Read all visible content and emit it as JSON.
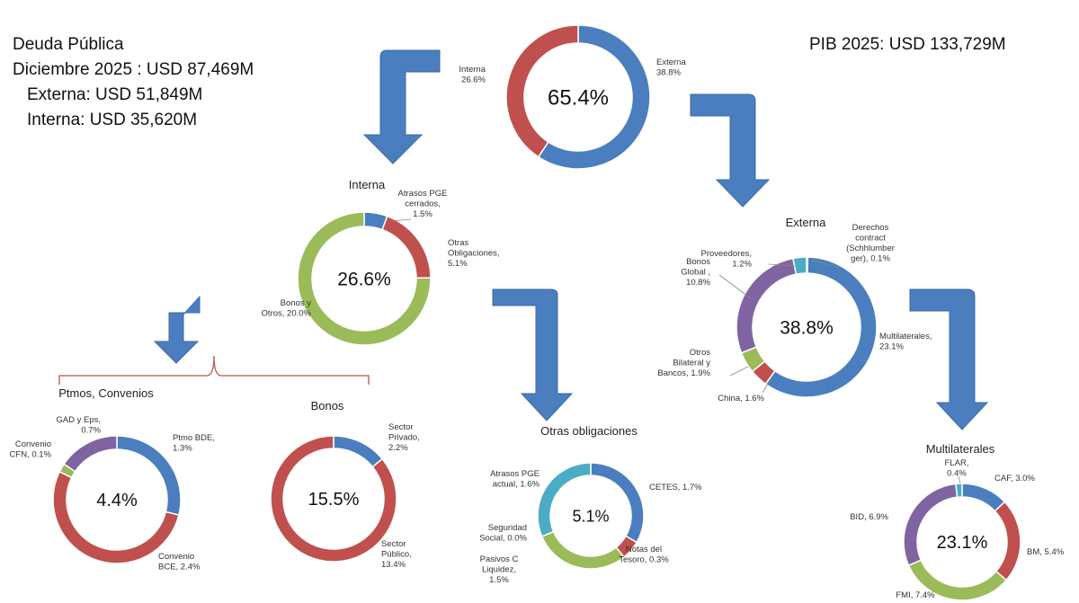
{
  "header": {
    "title": "Deuda Pública",
    "total": "Diciembre 2025 : USD 87,469M",
    "externa": "Externa: USD 51,849M",
    "interna": "Interna:  USD 35,620M",
    "pib": "PIB 2025: USD 133,729M"
  },
  "colors": {
    "blue": "#4a7ebf",
    "red": "#c0504d",
    "green": "#9bbb59",
    "purple": "#8064a2",
    "teal": "#4bacc6",
    "arrow": "#4a7ebf",
    "bracket": "#c0504d"
  },
  "chart_data": [
    {
      "type": "pie",
      "variant": "donut",
      "title": "",
      "center_label": "65.4%",
      "slices": [
        {
          "label": [
            "Externa",
            "38.8%"
          ],
          "value": 38.8,
          "color": "blue"
        },
        {
          "label": [
            "Interna",
            "26.6%"
          ],
          "value": 26.6,
          "color": "red"
        }
      ]
    },
    {
      "type": "pie",
      "variant": "donut",
      "title": "Interna",
      "center_label": "26.6%",
      "slices": [
        {
          "label": [
            "Atrasos PGE",
            "cerrados,",
            "1.5%"
          ],
          "value": 1.5,
          "color": "blue"
        },
        {
          "label": [
            "Otras",
            "Obligaciones,",
            "5.1%"
          ],
          "value": 5.1,
          "color": "red"
        },
        {
          "label": [
            "Bonos y",
            "Otros, 20.0%"
          ],
          "value": 20.0,
          "color": "green"
        }
      ]
    },
    {
      "type": "pie",
      "variant": "donut",
      "title": "Externa",
      "center_label": "38.8%",
      "slices": [
        {
          "label": [
            "Derechos",
            "contract",
            "(Schhlumber",
            "ger), 0.1%"
          ],
          "value": 0.1,
          "color": "blue"
        },
        {
          "label": [
            "Multilaterales,",
            "23.1%"
          ],
          "value": 23.1,
          "color": "blue"
        },
        {
          "label": [
            "China, 1.6%"
          ],
          "value": 1.6,
          "color": "red"
        },
        {
          "label": [
            "Otros",
            "Bilateral y",
            "Bancos, 1.9%"
          ],
          "value": 1.9,
          "color": "green"
        },
        {
          "label": [
            "Bonos",
            "Global ,",
            "10.8%"
          ],
          "value": 10.8,
          "color": "purple"
        },
        {
          "label": [
            "Proveedores,",
            "1.2%"
          ],
          "value": 1.2,
          "color": "teal"
        }
      ]
    },
    {
      "type": "pie",
      "variant": "donut",
      "title": "Ptmos, Convenios",
      "center_label": "4.4%",
      "slices": [
        {
          "label": [
            "Ptmo BDE,",
            "1.3%"
          ],
          "value": 1.3,
          "color": "blue"
        },
        {
          "label": [
            "Convenio",
            "BCE, 2.4%"
          ],
          "value": 2.4,
          "color": "red"
        },
        {
          "label": [
            "Convenio",
            "CFN, 0.1%"
          ],
          "value": 0.1,
          "color": "green"
        },
        {
          "label": [
            "GAD y Eps,",
            "0.7%"
          ],
          "value": 0.7,
          "color": "purple"
        }
      ]
    },
    {
      "type": "pie",
      "variant": "donut",
      "title": "Bonos",
      "center_label": "15.5%",
      "slices": [
        {
          "label": [
            "Sector",
            "Privado,",
            "2.2%"
          ],
          "value": 2.2,
          "color": "blue"
        },
        {
          "label": [
            "Sector",
            "Público,",
            "13.4%"
          ],
          "value": 13.4,
          "color": "red"
        }
      ]
    },
    {
      "type": "pie",
      "variant": "donut",
      "title": "Otras obligaciones",
      "center_label": "5.1%",
      "slices": [
        {
          "label": [
            "CETES, 1.7%"
          ],
          "value": 1.7,
          "color": "blue"
        },
        {
          "label": [
            "Notas del",
            "Tesoro, 0.3%"
          ],
          "value": 0.3,
          "color": "red"
        },
        {
          "label": [
            "Pasivos C",
            "Liquidez,",
            "1.5%"
          ],
          "value": 1.5,
          "color": "green"
        },
        {
          "label": [
            "Seguridad",
            "Social, 0.0%"
          ],
          "value": 0.0,
          "color": "purple"
        },
        {
          "label": [
            "Atrasos PGE",
            "actual, 1.6%"
          ],
          "value": 1.6,
          "color": "teal"
        }
      ]
    },
    {
      "type": "pie",
      "variant": "donut",
      "title": "Multilaterales",
      "center_label": "23.1%",
      "slices": [
        {
          "label": [
            "CAF, 3.0%"
          ],
          "value": 3.0,
          "color": "blue"
        },
        {
          "label": [
            "BM, 5.4%"
          ],
          "value": 5.4,
          "color": "red"
        },
        {
          "label": [
            "FMI, 7.4%"
          ],
          "value": 7.4,
          "color": "green"
        },
        {
          "label": [
            "BID, 6.9%"
          ],
          "value": 6.9,
          "color": "purple"
        },
        {
          "label": [
            "FLAR,",
            "0.4%"
          ],
          "value": 0.4,
          "color": "teal"
        }
      ]
    }
  ]
}
